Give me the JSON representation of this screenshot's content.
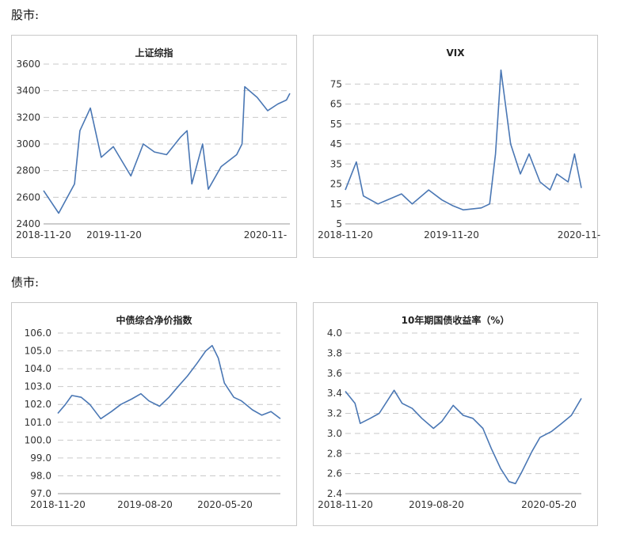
{
  "sections": {
    "stocks_label": "股市:",
    "bonds_label": "债市:"
  },
  "series_color": "#4a77b4",
  "chart_data": [
    {
      "type": "line",
      "title": "上证综指",
      "xlabel": "",
      "ylabel": "",
      "ylim": [
        2400,
        3600
      ],
      "yticks": [
        "2400",
        "2600",
        "2800",
        "3000",
        "3200",
        "3400",
        "3600"
      ],
      "xticks": [
        "2018-11-20",
        "2019-11-20",
        "2020-11-"
      ],
      "grid": true,
      "x": [
        "2018-11-20",
        "2019-01-04",
        "2019-02-20",
        "2019-03-08",
        "2019-04-08",
        "2019-05-10",
        "2019-06-15",
        "2019-08-06",
        "2019-09-12",
        "2019-10-15",
        "2019-11-20",
        "2019-12-31",
        "2020-01-20",
        "2020-02-03",
        "2020-03-06",
        "2020-03-23",
        "2020-04-30",
        "2020-06-15",
        "2020-07-01",
        "2020-07-09",
        "2020-08-15",
        "2020-09-15",
        "2020-10-15",
        "2020-11-10",
        "2020-11-20"
      ],
      "series": [
        {
          "values": [
            2650,
            2480,
            2700,
            3100,
            3270,
            2900,
            2980,
            2760,
            3000,
            2940,
            2920,
            3050,
            3100,
            2700,
            3000,
            2660,
            2830,
            2920,
            3000,
            3430,
            3350,
            3250,
            3300,
            3330,
            3380
          ]
        }
      ]
    },
    {
      "type": "line",
      "title": "VIX",
      "xlabel": "",
      "ylabel": "",
      "ylim": [
        5,
        85
      ],
      "yticks": [
        "5",
        "15",
        "25",
        "35",
        "45",
        "55",
        "65",
        "75"
      ],
      "xticks": [
        "2018-11-20",
        "2019-11-20",
        "2020-11-"
      ],
      "grid": true,
      "x": [
        "2018-11-20",
        "2018-12-24",
        "2019-01-15",
        "2019-03-01",
        "2019-05-13",
        "2019-06-15",
        "2019-08-05",
        "2019-09-15",
        "2019-10-20",
        "2019-11-20",
        "2020-01-15",
        "2020-02-10",
        "2020-02-28",
        "2020-03-16",
        "2020-04-15",
        "2020-05-15",
        "2020-06-11",
        "2020-07-15",
        "2020-08-15",
        "2020-09-05",
        "2020-10-10",
        "2020-10-30",
        "2020-11-20"
      ],
      "series": [
        {
          "values": [
            22,
            36,
            19,
            15,
            20,
            15,
            22,
            17,
            14,
            12,
            13,
            15,
            40,
            82,
            45,
            30,
            40,
            26,
            22,
            30,
            26,
            40,
            23
          ]
        }
      ]
    },
    {
      "type": "line",
      "title": "中债综合净价指数",
      "xlabel": "",
      "ylabel": "",
      "ylim": [
        97.0,
        106.0
      ],
      "yticks": [
        "97.0",
        "98.0",
        "99.0",
        "100.0",
        "101.0",
        "102.0",
        "103.0",
        "104.0",
        "105.0",
        "106.0"
      ],
      "xticks": [
        "2018-11-20",
        "2019-08-20",
        "2020-05-20"
      ],
      "grid": true,
      "x": [
        "2018-11-20",
        "2018-12-15",
        "2019-01-05",
        "2019-02-05",
        "2019-03-05",
        "2019-04-10",
        "2019-05-15",
        "2019-06-15",
        "2019-07-20",
        "2019-08-20",
        "2019-09-15",
        "2019-10-20",
        "2019-11-20",
        "2019-12-20",
        "2020-01-20",
        "2020-02-20",
        "2020-03-20",
        "2020-04-10",
        "2020-04-30",
        "2020-05-20",
        "2020-06-20",
        "2020-07-15",
        "2020-08-20",
        "2020-09-20",
        "2020-10-20",
        "2020-11-20"
      ],
      "series": [
        {
          "values": [
            101.5,
            102.0,
            102.5,
            102.4,
            102.0,
            101.2,
            101.6,
            102.0,
            102.3,
            102.6,
            102.2,
            101.9,
            102.4,
            103.0,
            103.6,
            104.3,
            105.0,
            105.3,
            104.6,
            103.2,
            102.4,
            102.2,
            101.7,
            101.4,
            101.6,
            101.2
          ]
        }
      ]
    },
    {
      "type": "line",
      "title": "10年期国债收益率（%）",
      "xlabel": "",
      "ylabel": "",
      "ylim": [
        2.4,
        4.0
      ],
      "yticks": [
        "2.4",
        "2.6",
        "2.8",
        "3.0",
        "3.2",
        "3.4",
        "3.6",
        "3.8",
        "4.0"
      ],
      "xticks": [
        "2018-11-20",
        "2019-08-20",
        "2020-05-20"
      ],
      "grid": true,
      "x": [
        "2018-11-20",
        "2018-12-20",
        "2019-01-05",
        "2019-02-05",
        "2019-03-05",
        "2019-04-20",
        "2019-05-15",
        "2019-06-15",
        "2019-07-15",
        "2019-08-20",
        "2019-09-15",
        "2019-10-20",
        "2019-11-20",
        "2019-12-20",
        "2020-01-20",
        "2020-02-15",
        "2020-03-15",
        "2020-04-10",
        "2020-04-30",
        "2020-05-20",
        "2020-06-20",
        "2020-07-15",
        "2020-08-20",
        "2020-09-20",
        "2020-10-20",
        "2020-11-20"
      ],
      "series": [
        {
          "values": [
            3.42,
            3.3,
            3.1,
            3.15,
            3.2,
            3.43,
            3.3,
            3.25,
            3.15,
            3.05,
            3.12,
            3.28,
            3.18,
            3.15,
            3.05,
            2.85,
            2.65,
            2.52,
            2.5,
            2.62,
            2.82,
            2.96,
            3.02,
            3.1,
            3.18,
            3.35
          ]
        }
      ]
    }
  ]
}
